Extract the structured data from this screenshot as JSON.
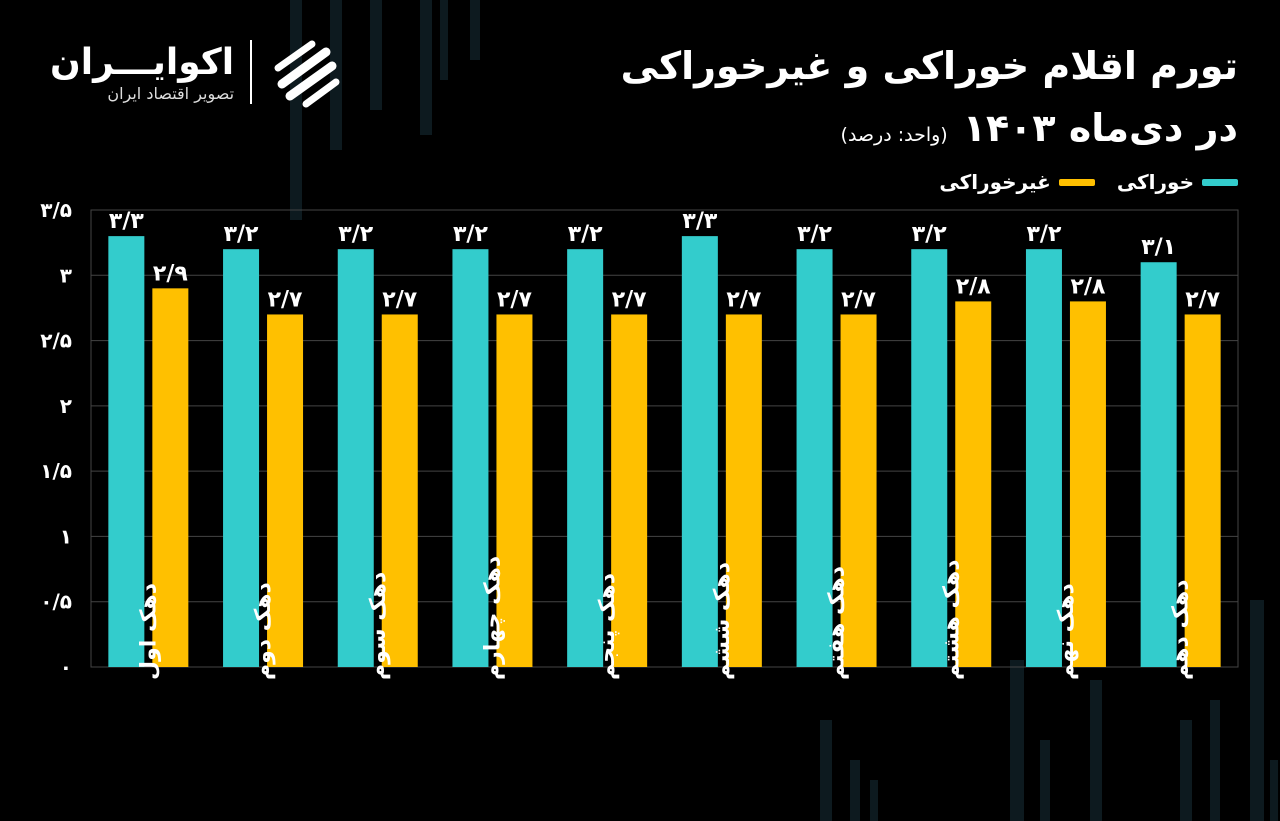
{
  "header": {
    "title": "تورم اقلام خوراکی و غیرخوراکی",
    "subtitle": "در دی‌ماه ۱۴۰۳",
    "unit": "(واحد: درصد)"
  },
  "brand": {
    "name": "اکوایـــران",
    "tagline": "تصویر اقتصاد ایران",
    "icon": "ecoiran-logo-icon"
  },
  "colors": {
    "food": "#33CCCC",
    "nonfood": "#FFC000",
    "background": "#000000",
    "text": "#FFFFFF"
  },
  "chart_data": {
    "type": "bar",
    "categories": [
      "دهک اول",
      "دهک دوم",
      "دهک سوم",
      "دهک چهارم",
      "دهک پنجم",
      "دهک ششم",
      "دهک هفتم",
      "دهک هشتم",
      "دهک نهم",
      "دهک دهم"
    ],
    "series": [
      {
        "name": "خوراکی",
        "values": [
          3.3,
          3.2,
          3.2,
          3.2,
          3.2,
          3.3,
          3.2,
          3.2,
          3.2,
          3.1
        ],
        "labels": [
          "۳/۳",
          "۳/۲",
          "۳/۲",
          "۳/۲",
          "۳/۲",
          "۳/۳",
          "۳/۲",
          "۳/۲",
          "۳/۲",
          "۳/۱"
        ]
      },
      {
        "name": "غیرخوراکی",
        "values": [
          2.9,
          2.7,
          2.7,
          2.7,
          2.7,
          2.7,
          2.7,
          2.8,
          2.8,
          2.7
        ],
        "labels": [
          "۲/۹",
          "۲/۷",
          "۲/۷",
          "۲/۷",
          "۲/۷",
          "۲/۷",
          "۲/۷",
          "۲/۸",
          "۲/۸",
          "۲/۷"
        ]
      }
    ],
    "ylim": [
      0,
      3.5
    ],
    "yticks": [
      0,
      0.5,
      1,
      1.5,
      2,
      2.5,
      3,
      3.5
    ],
    "ytick_labels": [
      "۰",
      "۰/۵",
      "۱",
      "۱/۵",
      "۲",
      "۲/۵",
      "۳",
      "۳/۵"
    ],
    "grid": true,
    "legend": "top-right"
  }
}
